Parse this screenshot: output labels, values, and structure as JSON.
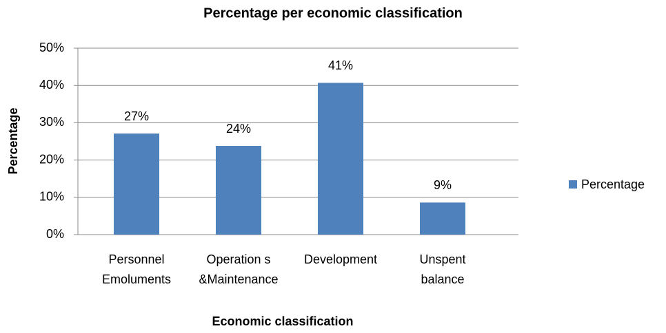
{
  "chart_data": {
    "type": "bar",
    "title": "Percentage per economic classification",
    "xlabel": "Economic classification",
    "ylabel": "Percentage",
    "categories": [
      [
        "Personnel",
        "Emoluments"
      ],
      [
        "Operation s",
        "&Maintenance"
      ],
      [
        "Development"
      ],
      [
        "Unspent",
        "balance"
      ]
    ],
    "series": [
      {
        "name": "Percentage",
        "color": "#4f81bd",
        "values": [
          27.1,
          23.8,
          40.7,
          8.6
        ],
        "value_labels": [
          "27%",
          "24%",
          "41%",
          "9%"
        ]
      }
    ],
    "ylim": [
      0,
      50
    ],
    "yticks": [
      {
        "value": 0,
        "label": "0%"
      },
      {
        "value": 10,
        "label": "10%"
      },
      {
        "value": 20,
        "label": "20%"
      },
      {
        "value": 30,
        "label": "30%"
      },
      {
        "value": 40,
        "label": "40%"
      },
      {
        "value": 50,
        "label": "50%"
      }
    ],
    "grid": true,
    "legend": "right"
  }
}
